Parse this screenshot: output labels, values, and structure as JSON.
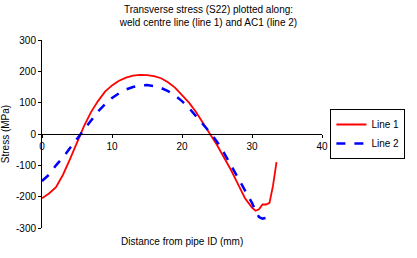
{
  "chart_data": {
    "type": "line",
    "title": "Transverse stress (S22) plotted along:\nweld centre line (line 1) and AC1 (line 2)",
    "x_label": "Distance from pipe ID (mm)",
    "y_label": "Stress (MPa)",
    "xlim": [
      0,
      40
    ],
    "xticks": [
      0,
      10,
      20,
      30,
      40
    ],
    "ylim": [
      -300,
      300
    ],
    "yticks": [
      -300,
      -200,
      -100,
      0,
      100,
      200,
      300
    ],
    "grid": false,
    "legend": "right",
    "series": [
      {
        "name": "Line 1",
        "color": "#ff0000",
        "line_style": "solid",
        "marker": "none",
        "x": [
          0,
          1,
          2,
          3,
          4,
          5,
          6,
          7,
          8,
          9,
          10,
          11,
          12,
          13,
          14,
          15,
          16,
          17,
          18,
          19,
          20,
          21,
          22,
          23,
          24,
          25,
          26,
          27,
          28,
          29,
          30,
          30.5,
          31,
          31.5,
          32,
          32.5,
          33,
          33.5
        ],
        "values": [
          -205,
          -190,
          -170,
          -130,
          -80,
          -25,
          25,
          70,
          105,
          135,
          155,
          170,
          180,
          186,
          189,
          188,
          185,
          178,
          165,
          148,
          125,
          100,
          70,
          35,
          0,
          -35,
          -75,
          -115,
          -160,
          -205,
          -235,
          -245,
          -240,
          -225,
          -225,
          -220,
          -165,
          -90
        ]
      },
      {
        "name": "Line 2",
        "color": "#0000ff",
        "line_style": "dash",
        "marker": "none",
        "x": [
          0,
          1,
          2,
          3,
          4,
          5,
          6,
          7,
          8,
          9,
          10,
          11,
          12,
          13,
          14,
          15,
          16,
          17,
          18,
          19,
          20,
          21,
          22,
          23,
          24,
          25,
          26,
          27,
          28,
          29,
          30,
          30.5,
          31,
          31.5,
          32
        ],
        "values": [
          -150,
          -130,
          -100,
          -75,
          -45,
          -15,
          15,
          45,
          72,
          95,
          115,
          130,
          142,
          150,
          155,
          156,
          153,
          147,
          137,
          123,
          105,
          83,
          58,
          32,
          5,
          -25,
          -60,
          -100,
          -140,
          -180,
          -220,
          -245,
          -265,
          -270,
          -268
        ]
      }
    ]
  }
}
